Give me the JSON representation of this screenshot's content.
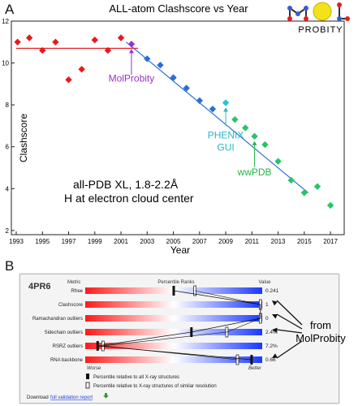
{
  "panel_a_letter": "A",
  "panel_b_letter": "B",
  "logo": {
    "word": "PROBITY",
    "letters": "MOL"
  },
  "chart_data": [
    {
      "type": "scatter",
      "title": "ALL-atom Clashscore vs Year",
      "xlabel": "Year",
      "ylabel": "Clashscore",
      "xlim": [
        1993,
        2017.8
      ],
      "ylim": [
        1.8,
        12
      ],
      "xticks": [
        "1993",
        "1995",
        "1997",
        "1999",
        "2001",
        "2003",
        "2005",
        "2007",
        "2009",
        "2011",
        "2013",
        "2015",
        "2017"
      ],
      "yticks": [
        "2",
        "4",
        "6",
        "8",
        "10",
        "12"
      ],
      "grid": false,
      "points": [
        {
          "x": 1993.1,
          "y": 11.0,
          "color": "#e8191d"
        },
        {
          "x": 1994.0,
          "y": 11.2,
          "color": "#e8191d"
        },
        {
          "x": 1995.0,
          "y": 10.6,
          "color": "#e8191d"
        },
        {
          "x": 1996.0,
          "y": 11.0,
          "color": "#e8191d"
        },
        {
          "x": 1997.0,
          "y": 9.2,
          "color": "#e8191d"
        },
        {
          "x": 1998.0,
          "y": 9.7,
          "color": "#e8191d"
        },
        {
          "x": 1999.0,
          "y": 11.1,
          "color": "#e8191d"
        },
        {
          "x": 2000.0,
          "y": 10.6,
          "color": "#e8191d"
        },
        {
          "x": 2001.0,
          "y": 11.2,
          "color": "#e8191d"
        },
        {
          "x": 2001.8,
          "y": 10.9,
          "color": "#9932cc"
        },
        {
          "x": 2003.0,
          "y": 10.2,
          "color": "#2a6fd8"
        },
        {
          "x": 2004.0,
          "y": 9.9,
          "color": "#2a6fd8"
        },
        {
          "x": 2005.0,
          "y": 9.3,
          "color": "#2a6fd8"
        },
        {
          "x": 2006.0,
          "y": 8.8,
          "color": "#2a6fd8"
        },
        {
          "x": 2007.0,
          "y": 8.2,
          "color": "#2a6fd8"
        },
        {
          "x": 2008.0,
          "y": 7.8,
          "color": "#2a6fd8"
        },
        {
          "x": 2009.0,
          "y": 8.1,
          "color": "#27c4d6"
        },
        {
          "x": 2009.7,
          "y": 7.3,
          "color": "#27c46a"
        },
        {
          "x": 2010.5,
          "y": 6.9,
          "color": "#27c46a"
        },
        {
          "x": 2011.2,
          "y": 6.5,
          "color": "#27c46a"
        },
        {
          "x": 2012.0,
          "y": 6.1,
          "color": "#27c46a"
        },
        {
          "x": 2013.0,
          "y": 5.3,
          "color": "#27c46a"
        },
        {
          "x": 2014.0,
          "y": 4.4,
          "color": "#27c46a"
        },
        {
          "x": 2015.0,
          "y": 3.8,
          "color": "#27c46a"
        },
        {
          "x": 2016.0,
          "y": 4.1,
          "color": "#27c46a"
        },
        {
          "x": 2017.0,
          "y": 3.2,
          "color": "#27c46a"
        }
      ],
      "trend_lines": [
        {
          "x": [
            1993,
            2002.3
          ],
          "y": [
            10.7,
            10.7
          ],
          "color": "#e8191d"
        },
        {
          "x": [
            2001.4,
            2015.3
          ],
          "y": [
            11.0,
            3.8
          ],
          "color": "#2a6fd8"
        }
      ],
      "annotations": [
        {
          "text": "MolProbity",
          "color": "#9932cc",
          "x": 2001.8,
          "y": 10.9
        },
        {
          "text": "PHENIX",
          "text2": "GUI",
          "color": "#27b8c8",
          "x": 2009.0,
          "y": 8.1
        },
        {
          "text": "wwPDB",
          "color": "#27b44a",
          "x": 2011.2,
          "y": 6.5
        }
      ],
      "note_lines": [
        "all-PDB XL, 1.8-2.2Å",
        "H at electron cloud center"
      ]
    },
    {
      "type": "table",
      "pdb_id": "4PR6",
      "headers": {
        "metric": "Metric",
        "ranks": "Percentile Ranks",
        "value": "Value"
      },
      "rows": [
        {
          "metric": "Rfree",
          "value": "0.241",
          "all": 0.5,
          "similar": 0.62
        },
        {
          "metric": "Clashscore",
          "value": "1",
          "all": 0.99,
          "similar": 0.99
        },
        {
          "metric": "Ramachandran outliers",
          "value": "0",
          "all": 0.99,
          "similar": 0.99
        },
        {
          "metric": "Sidechain outliers",
          "value": "2.4%",
          "all": 0.6,
          "similar": 0.8
        },
        {
          "metric": "RSRZ outliers",
          "value": "7.2%",
          "all": 0.07,
          "similar": 0.1
        },
        {
          "metric": "RNA backbone",
          "value": "0.66",
          "all": 0.94,
          "similar": 0.86
        }
      ],
      "scale_left": "Worse",
      "scale_right": "Better",
      "legend": [
        "Percentile relative to all X-ray structures",
        "Percentile relative to X-ray structures of similar resolution"
      ],
      "download_prefix": "Download",
      "download_link": "full validation report"
    }
  ],
  "from_label": [
    "from",
    "MolProbity"
  ]
}
